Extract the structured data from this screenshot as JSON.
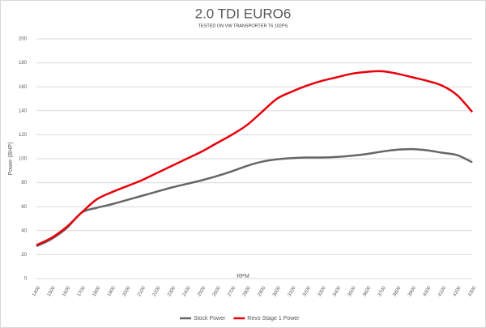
{
  "chart_data": {
    "type": "line",
    "title": "2.0 TDI EURO6",
    "subtitle": "TESTED ON VW TRANSPORTER T6 102PS",
    "x_label": "RPM",
    "y_label": "Power (BHP)",
    "categories": [
      "1400",
      "1500",
      "1600",
      "1700",
      "1800",
      "1900",
      "2000",
      "2100",
      "2200",
      "2300",
      "2400",
      "2500",
      "2600",
      "2700",
      "2800",
      "2900",
      "3000",
      "3100",
      "3200",
      "3300",
      "3400",
      "3500",
      "3600",
      "3700",
      "3800",
      "3900",
      "4000",
      "4100",
      "4200",
      "4300"
    ],
    "series": [
      {
        "name": "Stock Power",
        "color": "#666666",
        "values": [
          27,
          33,
          42,
          55,
          59,
          62,
          65.5,
          69,
          72.5,
          76,
          79,
          82,
          85.5,
          89.5,
          94,
          97.5,
          99.5,
          100.5,
          101,
          101,
          101.5,
          102.5,
          104,
          106,
          107.5,
          108,
          107,
          105,
          103,
          97
        ]
      },
      {
        "name": "Revo Stage 1 Power",
        "color": "#e8000b",
        "values": [
          28,
          34,
          43,
          55,
          66,
          72,
          77,
          82,
          88,
          94,
          100,
          106,
          113,
          120,
          128,
          139,
          150,
          156,
          161,
          165,
          168,
          171,
          172.5,
          173,
          171,
          168,
          165,
          161,
          153,
          139
        ]
      }
    ],
    "ylim": [
      0,
      200
    ],
    "yticks": [
      0,
      20,
      40,
      60,
      80,
      100,
      120,
      140,
      160,
      180,
      200
    ],
    "grid": true,
    "legend": "bottom"
  }
}
